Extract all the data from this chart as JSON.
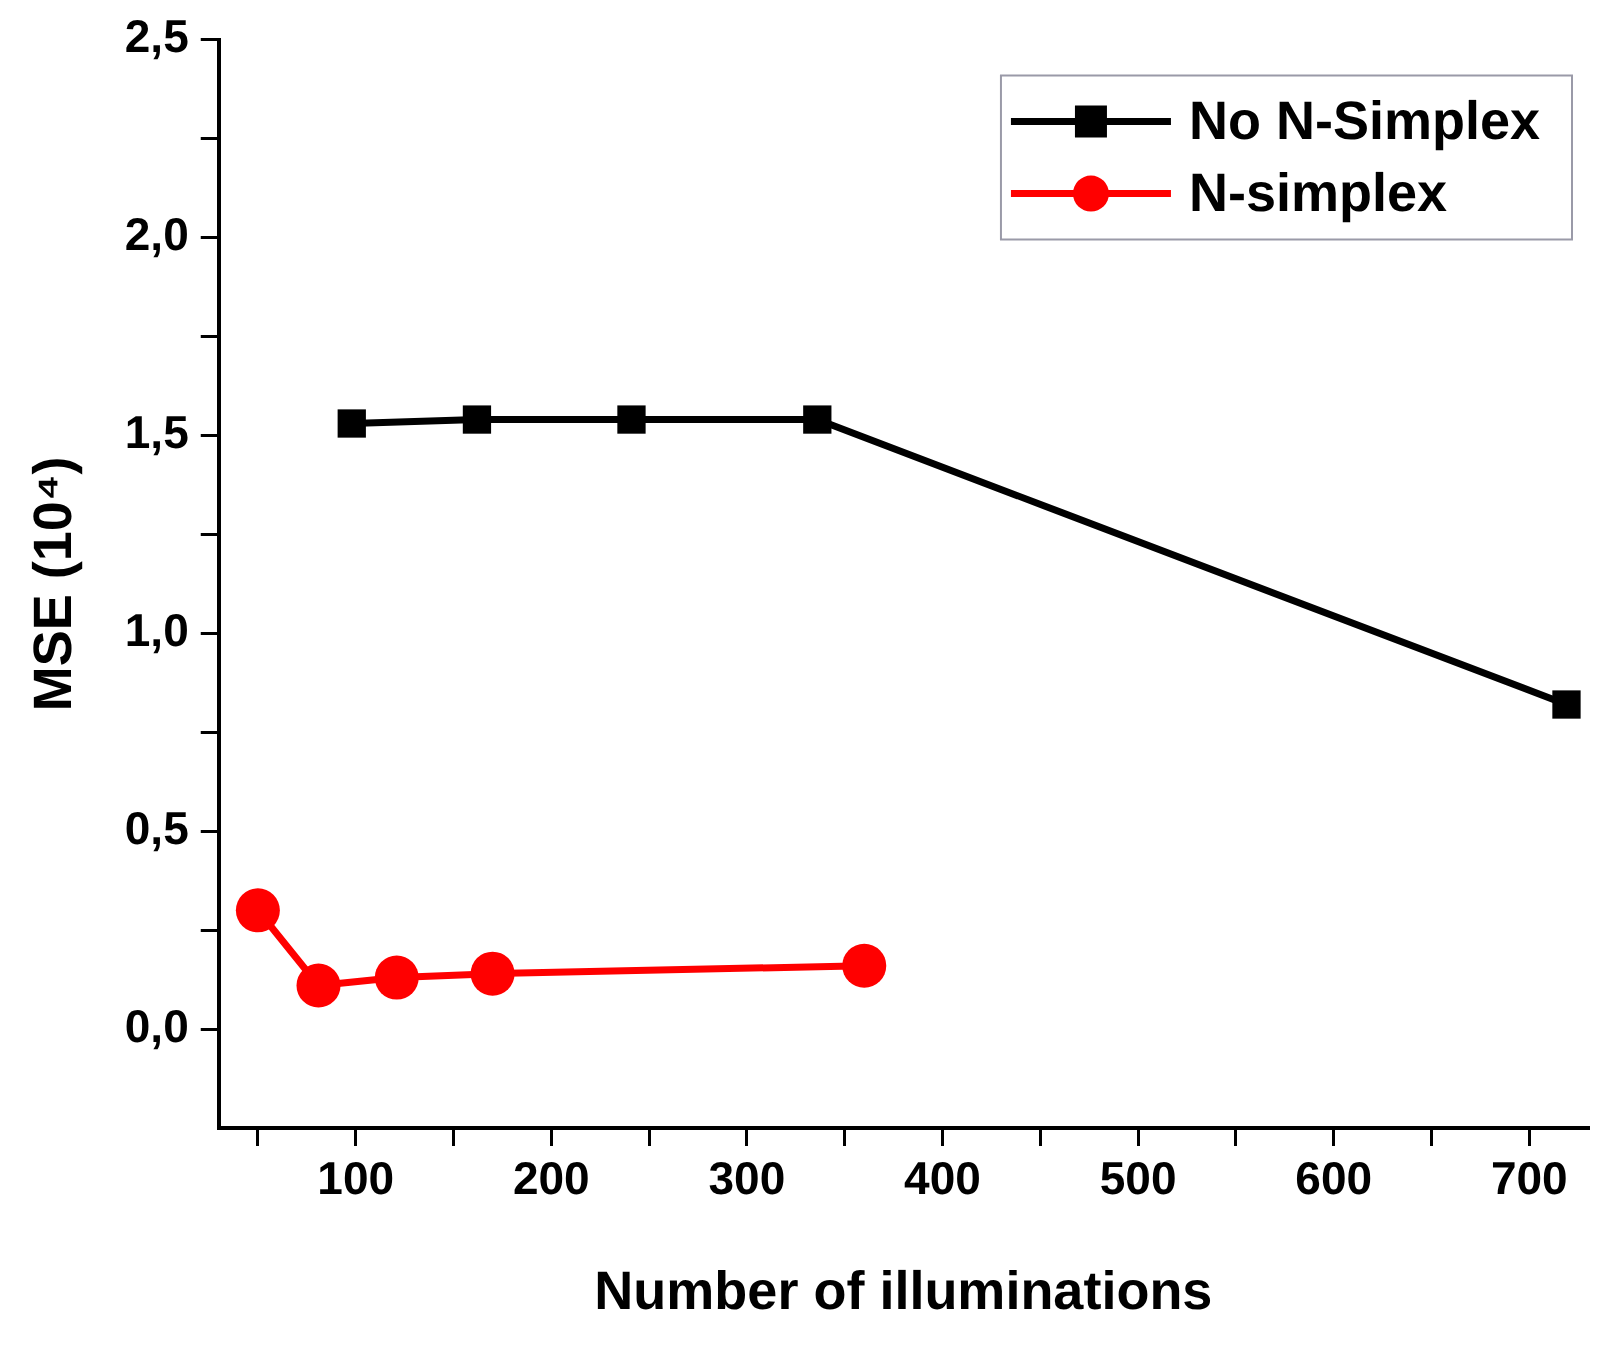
{
  "chart_data": {
    "type": "line",
    "xlabel": "Number of illuminations",
    "ylabel": "MSE (10⁴)",
    "xlim": [
      30,
      730
    ],
    "xticks": [
      {
        "value": 50,
        "label": null
      },
      100,
      {
        "value": 150,
        "label": null
      },
      200,
      {
        "value": 250,
        "label": null
      },
      300,
      {
        "value": 350,
        "label": null
      },
      400,
      {
        "value": 450,
        "label": null
      },
      500,
      {
        "value": 550,
        "label": null
      },
      600,
      {
        "value": 650,
        "label": null
      },
      700
    ],
    "ylim": [
      -0.25,
      2.5
    ],
    "yticks": [
      {
        "value": 0,
        "label": "0,0"
      },
      {
        "value": 0.25,
        "label": null
      },
      {
        "value": 0.5,
        "label": "0,5"
      },
      {
        "value": 0.75,
        "label": null
      },
      {
        "value": 1,
        "label": "1,0"
      },
      {
        "value": 1.25,
        "label": null
      },
      {
        "value": 1.5,
        "label": "1,5"
      },
      {
        "value": 1.75,
        "label": null
      },
      {
        "value": 2,
        "label": "2,0"
      },
      {
        "value": 2.25,
        "label": null
      },
      {
        "value": 2.5,
        "label": "2,5"
      }
    ],
    "grid": false,
    "legend": "top right",
    "line_style": "solid",
    "series": [
      {
        "name": "No N-Simplex",
        "color": "#000000",
        "marker": "square",
        "x": [
          98,
          162,
          241,
          336,
          719
        ],
        "values": [
          1.53,
          1.54,
          1.54,
          1.54,
          0.82
        ]
      },
      {
        "name": "N-simplex",
        "color": "#ff0000",
        "marker": "circle",
        "x": [
          50,
          81,
          121,
          170,
          360
        ],
        "values": [
          0.3,
          0.11,
          0.13,
          0.14,
          0.16
        ]
      }
    ]
  }
}
